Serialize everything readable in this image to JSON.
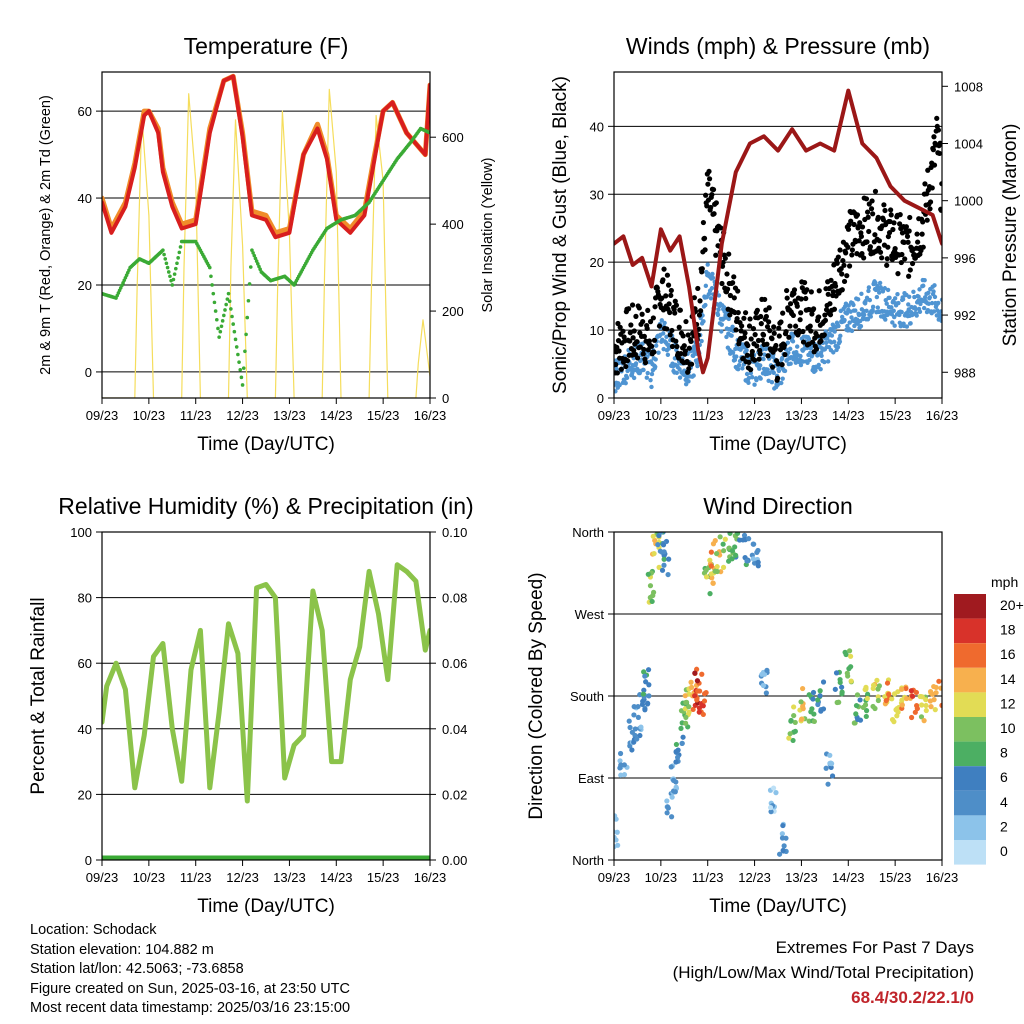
{
  "time_ticks": [
    "09/23",
    "10/23",
    "11/23",
    "12/23",
    "13/23",
    "14/23",
    "15/23",
    "16/23"
  ],
  "colors": {
    "temp2m": "#d81e1e",
    "temp9m": "#f08c2a",
    "dewpoint": "#3aaa35",
    "solar": "#f5dd5c",
    "prop_wind": "#4f94d2",
    "gust": "#000000",
    "pressure": "#9b1717",
    "rh": "#8bc34a",
    "precip": "#3aaa35"
  },
  "panels": {
    "temperature": {
      "title": "Temperature (F)",
      "ylabel_left": "2m & 9m T (Red, Orange) & 2m Td (Green)",
      "ylabel_right": "Solar Insolation (Yellow)",
      "xlabel": "Time (Day/UTC)",
      "left_ticks": [
        "0",
        "20",
        "40",
        "60"
      ],
      "right_ticks": [
        "0",
        "200",
        "400",
        "600"
      ]
    },
    "winds": {
      "title": "Winds (mph) & Pressure (mb)",
      "ylabel_left": "Sonic/Prop Wind & Gust (Blue, Black)",
      "ylabel_right": "Station Pressure (Maroon)",
      "xlabel": "Time (Day/UTC)",
      "left_ticks": [
        "0",
        "10",
        "20",
        "30",
        "40"
      ],
      "right_ticks": [
        "988",
        "992",
        "996",
        "1000",
        "1004",
        "1008"
      ]
    },
    "humidity": {
      "title": "Relative Humidity (%) & Precipitation (in)",
      "ylabel_left": "Percent & Total Rainfall",
      "xlabel": "Time (Day/UTC)",
      "left_ticks": [
        "0",
        "20",
        "40",
        "60",
        "80",
        "100"
      ],
      "right_ticks": [
        "0.00",
        "0.02",
        "0.04",
        "0.06",
        "0.08",
        "0.10"
      ]
    },
    "direction": {
      "title": "Wind Direction",
      "ylabel_left": "Direction (Colored By Speed)",
      "xlabel": "Time (Day/UTC)",
      "left_ticks": [
        "North",
        "East",
        "South",
        "West",
        "North"
      ],
      "colorbar_title": "mph",
      "colorbar_labels": [
        "0",
        "2",
        "4",
        "6",
        "8",
        "10",
        "12",
        "14",
        "16",
        "18",
        "20+"
      ],
      "colorbar_colors": [
        "#bde0f6",
        "#8cc3ea",
        "#4e8ec8",
        "#3f7fc0",
        "#4caf63",
        "#7cc060",
        "#e2dc55",
        "#f7b04e",
        "#ef6a2e",
        "#d8322a",
        "#a01a1f"
      ]
    }
  },
  "chart_data": [
    {
      "type": "line",
      "title": "Temperature (F)",
      "xlabel": "Time (Day/UTC)",
      "ylabel": "2m & 9m T (Red, Orange) & 2m Td (Green)",
      "y2label": "Solar Insolation (Yellow)",
      "x_unit": "day",
      "xlim": [
        9,
        16
      ],
      "ylim": [
        -6,
        69
      ],
      "y2lim": [
        0,
        750
      ],
      "series": [
        {
          "name": "2m T",
          "x": [
            9.0,
            9.2,
            9.5,
            9.7,
            9.9,
            10.0,
            10.2,
            10.3,
            10.5,
            10.7,
            11.0,
            11.3,
            11.6,
            11.8,
            12.0,
            12.2,
            12.5,
            12.7,
            13.0,
            13.3,
            13.6,
            13.8,
            14.0,
            14.3,
            14.6,
            14.8,
            15.0,
            15.2,
            15.5,
            15.9,
            16.0
          ],
          "y": [
            39,
            32,
            38,
            47,
            59,
            60,
            55,
            46,
            38,
            33,
            34,
            55,
            67,
            68,
            54,
            36,
            35,
            31,
            32,
            50,
            56,
            49,
            35,
            32,
            36,
            48,
            60,
            62,
            55,
            50,
            66
          ]
        },
        {
          "name": "9m T",
          "x": [
            9.0,
            9.2,
            9.5,
            9.7,
            9.9,
            10.0,
            10.2,
            10.3,
            10.5,
            10.7,
            11.0,
            11.3,
            11.6,
            11.8,
            12.0,
            12.2,
            12.5,
            12.7,
            13.0,
            13.3,
            13.6,
            13.8,
            14.0,
            14.3,
            14.6,
            14.8,
            15.0,
            15.2,
            15.5,
            15.9,
            16.0
          ],
          "y": [
            40,
            33,
            39,
            48,
            60,
            60,
            56,
            47,
            39,
            34,
            35,
            56,
            67,
            68,
            55,
            37,
            36,
            32,
            33,
            50,
            57,
            50,
            36,
            33,
            37,
            49,
            60,
            62,
            55,
            50,
            66
          ]
        },
        {
          "name": "2m Td",
          "x": [
            9.0,
            9.3,
            9.6,
            9.8,
            10.0,
            10.3,
            10.5,
            10.7,
            11.0,
            11.3,
            11.5,
            11.7,
            12.0,
            12.2,
            12.4,
            12.6,
            12.9,
            13.1,
            13.3,
            13.5,
            13.8,
            14.1,
            14.4,
            14.7,
            15.0,
            15.3,
            15.6,
            15.8,
            16.0
          ],
          "y": [
            18,
            17,
            24,
            26,
            25,
            28,
            20,
            30,
            30,
            24,
            8,
            18,
            -3,
            28,
            23,
            21,
            22,
            20,
            24,
            28,
            33,
            35,
            36,
            39,
            44,
            49,
            53,
            56,
            55
          ]
        },
        {
          "name": "Solar Insolation",
          "axis": "y2",
          "x": [
            9.0,
            9.7,
            9.75,
            9.85,
            10.0,
            10.1,
            10.7,
            10.75,
            10.85,
            11.0,
            11.1,
            11.7,
            11.75,
            11.85,
            12.0,
            12.1,
            12.7,
            12.75,
            12.85,
            13.0,
            13.1,
            13.7,
            13.75,
            13.85,
            14.0,
            14.1,
            14.7,
            14.75,
            14.85,
            15.0,
            15.1,
            15.7,
            15.75,
            15.85,
            16.0
          ],
          "y": [
            0,
            0,
            250,
            650,
            420,
            0,
            0,
            300,
            700,
            500,
            0,
            0,
            300,
            640,
            350,
            0,
            0,
            260,
            660,
            380,
            0,
            0,
            290,
            710,
            520,
            0,
            0,
            250,
            650,
            500,
            0,
            0,
            80,
            180,
            50
          ]
        }
      ]
    },
    {
      "type": "scatter",
      "title": "Winds (mph) & Pressure (mb)",
      "xlabel": "Time (Day/UTC)",
      "ylabel": "Sonic/Prop Wind & Gust (Blue, Black)",
      "y2label": "Station Pressure (Maroon)",
      "x_unit": "day",
      "xlim": [
        9,
        16
      ],
      "ylim": [
        0,
        48
      ],
      "y2lim": [
        986.2,
        1009
      ],
      "series": [
        {
          "name": "Sonic/Prop Wind",
          "x": [
            9.0,
            9.3,
            9.6,
            9.8,
            10.0,
            10.3,
            10.6,
            10.8,
            11.0,
            11.3,
            11.6,
            11.8,
            12.0,
            12.2,
            12.5,
            12.8,
            13.0,
            13.3,
            13.6,
            13.8,
            14.0,
            14.3,
            14.6,
            14.8,
            15.0,
            15.3,
            15.6,
            15.9,
            16.0
          ],
          "y": [
            3,
            5,
            6,
            4,
            10,
            6,
            4,
            7,
            18,
            12,
            7,
            5,
            4,
            6,
            3,
            8,
            7,
            6,
            8,
            10,
            12,
            13,
            15,
            14,
            13,
            13,
            15,
            14,
            12
          ]
        },
        {
          "name": "Gust",
          "x": [
            9.0,
            9.3,
            9.6,
            9.8,
            10.0,
            10.3,
            10.6,
            10.8,
            11.0,
            11.3,
            11.6,
            11.8,
            12.0,
            12.2,
            12.5,
            12.8,
            13.0,
            13.3,
            13.6,
            13.8,
            14.0,
            14.3,
            14.6,
            14.8,
            15.0,
            15.3,
            15.6,
            15.9,
            16.0
          ],
          "y": [
            7,
            9,
            10,
            8,
            16,
            11,
            8,
            13,
            30,
            21,
            13,
            9,
            8,
            11,
            6,
            15,
            13,
            11,
            14,
            19,
            23,
            25,
            26,
            24,
            23,
            22,
            26,
            38,
            30
          ]
        },
        {
          "name": "Station Pressure",
          "axis": "y2",
          "x": [
            9.0,
            9.2,
            9.4,
            9.6,
            9.8,
            10.0,
            10.2,
            10.4,
            10.6,
            10.8,
            10.9,
            11.0,
            11.3,
            11.6,
            11.9,
            12.2,
            12.5,
            12.8,
            13.1,
            13.4,
            13.7,
            14.0,
            14.3,
            14.6,
            14.9,
            15.2,
            15.5,
            15.8,
            16.0
          ],
          "y": [
            997,
            997.5,
            995.5,
            996,
            994,
            998,
            996.5,
            997.5,
            994,
            989.5,
            988,
            989,
            997,
            1002,
            1004,
            1004.5,
            1003.5,
            1005,
            1003.5,
            1004,
            1003.5,
            1007.7,
            1004,
            1003,
            1001,
            1000,
            999.5,
            999,
            997
          ]
        }
      ]
    },
    {
      "type": "line",
      "title": "Relative Humidity (%) & Precipitation (in)",
      "xlabel": "Time (Day/UTC)",
      "ylabel": "Percent & Total Rainfall",
      "x_unit": "day",
      "xlim": [
        9,
        16
      ],
      "ylim": [
        0,
        100
      ],
      "y2lim": [
        0,
        0.1
      ],
      "series": [
        {
          "name": "Relative Humidity",
          "x": [
            9.0,
            9.1,
            9.3,
            9.5,
            9.7,
            9.9,
            10.1,
            10.3,
            10.5,
            10.7,
            10.9,
            11.1,
            11.3,
            11.5,
            11.7,
            11.9,
            12.1,
            12.3,
            12.5,
            12.7,
            12.9,
            13.1,
            13.3,
            13.5,
            13.7,
            13.9,
            14.1,
            14.3,
            14.5,
            14.7,
            14.9,
            15.1,
            15.3,
            15.5,
            15.7,
            15.9,
            16.0
          ],
          "y": [
            42,
            53,
            60,
            52,
            22,
            38,
            62,
            66,
            40,
            24,
            58,
            70,
            22,
            45,
            72,
            63,
            18,
            83,
            84,
            80,
            25,
            35,
            38,
            82,
            70,
            30,
            30,
            55,
            65,
            88,
            75,
            55,
            90,
            88,
            85,
            64,
            70
          ]
        },
        {
          "name": "Precipitation",
          "axis": "y2",
          "x": [
            9.0,
            16.0
          ],
          "y": [
            0,
            0
          ]
        }
      ]
    },
    {
      "type": "scatter",
      "title": "Wind Direction",
      "xlabel": "Time (Day/UTC)",
      "ylabel": "Direction (Colored By Speed)",
      "x_unit": "day",
      "xlim": [
        9,
        16
      ],
      "ylim": [
        0,
        360
      ],
      "y_ticks": [
        "North",
        "East",
        "South",
        "West",
        "North"
      ],
      "colorbar_title": "mph",
      "series": [
        {
          "name": "Direction",
          "x": [
            9.0,
            9.2,
            9.4,
            9.5,
            9.6,
            9.7,
            9.8,
            9.9,
            10.0,
            10.1,
            10.2,
            10.3,
            10.4,
            10.5,
            10.6,
            10.7,
            10.8,
            10.9,
            11.0,
            11.1,
            11.2,
            11.4,
            11.6,
            11.8,
            12.0,
            12.2,
            12.4,
            12.6,
            12.8,
            13.0,
            13.2,
            13.4,
            13.6,
            13.8,
            14.0,
            14.2,
            14.4,
            14.6,
            14.8,
            15.0,
            15.2,
            15.4,
            15.6,
            15.8,
            16.0
          ],
          "y": [
            30,
            100,
            140,
            150,
            170,
            190,
            300,
            340,
            350,
            330,
            60,
            90,
            120,
            160,
            170,
            185,
            190,
            175,
            310,
            320,
            335,
            340,
            350,
            340,
            330,
            200,
            60,
            20,
            150,
            170,
            165,
            180,
            100,
            190,
            210,
            170,
            170,
            185,
            180,
            170,
            180,
            175,
            170,
            175,
            180
          ],
          "speed": [
            2,
            3,
            4,
            4,
            5,
            6,
            10,
            12,
            6,
            5,
            3,
            4,
            6,
            8,
            12,
            16,
            18,
            16,
            10,
            14,
            12,
            10,
            8,
            6,
            4,
            3,
            2,
            4,
            10,
            12,
            8,
            6,
            4,
            8,
            10,
            8,
            10,
            12,
            14,
            12,
            14,
            16,
            12,
            14,
            16
          ]
        }
      ]
    }
  ],
  "footer": {
    "location": "Location: Schodack",
    "elevation": "Station elevation: 104.882 m",
    "latlon": "Station lat/lon: 42.5063; -73.6858",
    "created": "Figure created on Sun, 2025-03-16, at 23:50 UTC",
    "recent": "Most recent data timestamp: 2025/03/16 23:15:00",
    "extremes_title": "Extremes For Past 7 Days",
    "extremes_sub": "(High/Low/Max Wind/Total Precipitation)",
    "extremes_values": "68.4/30.2/22.1/0"
  }
}
